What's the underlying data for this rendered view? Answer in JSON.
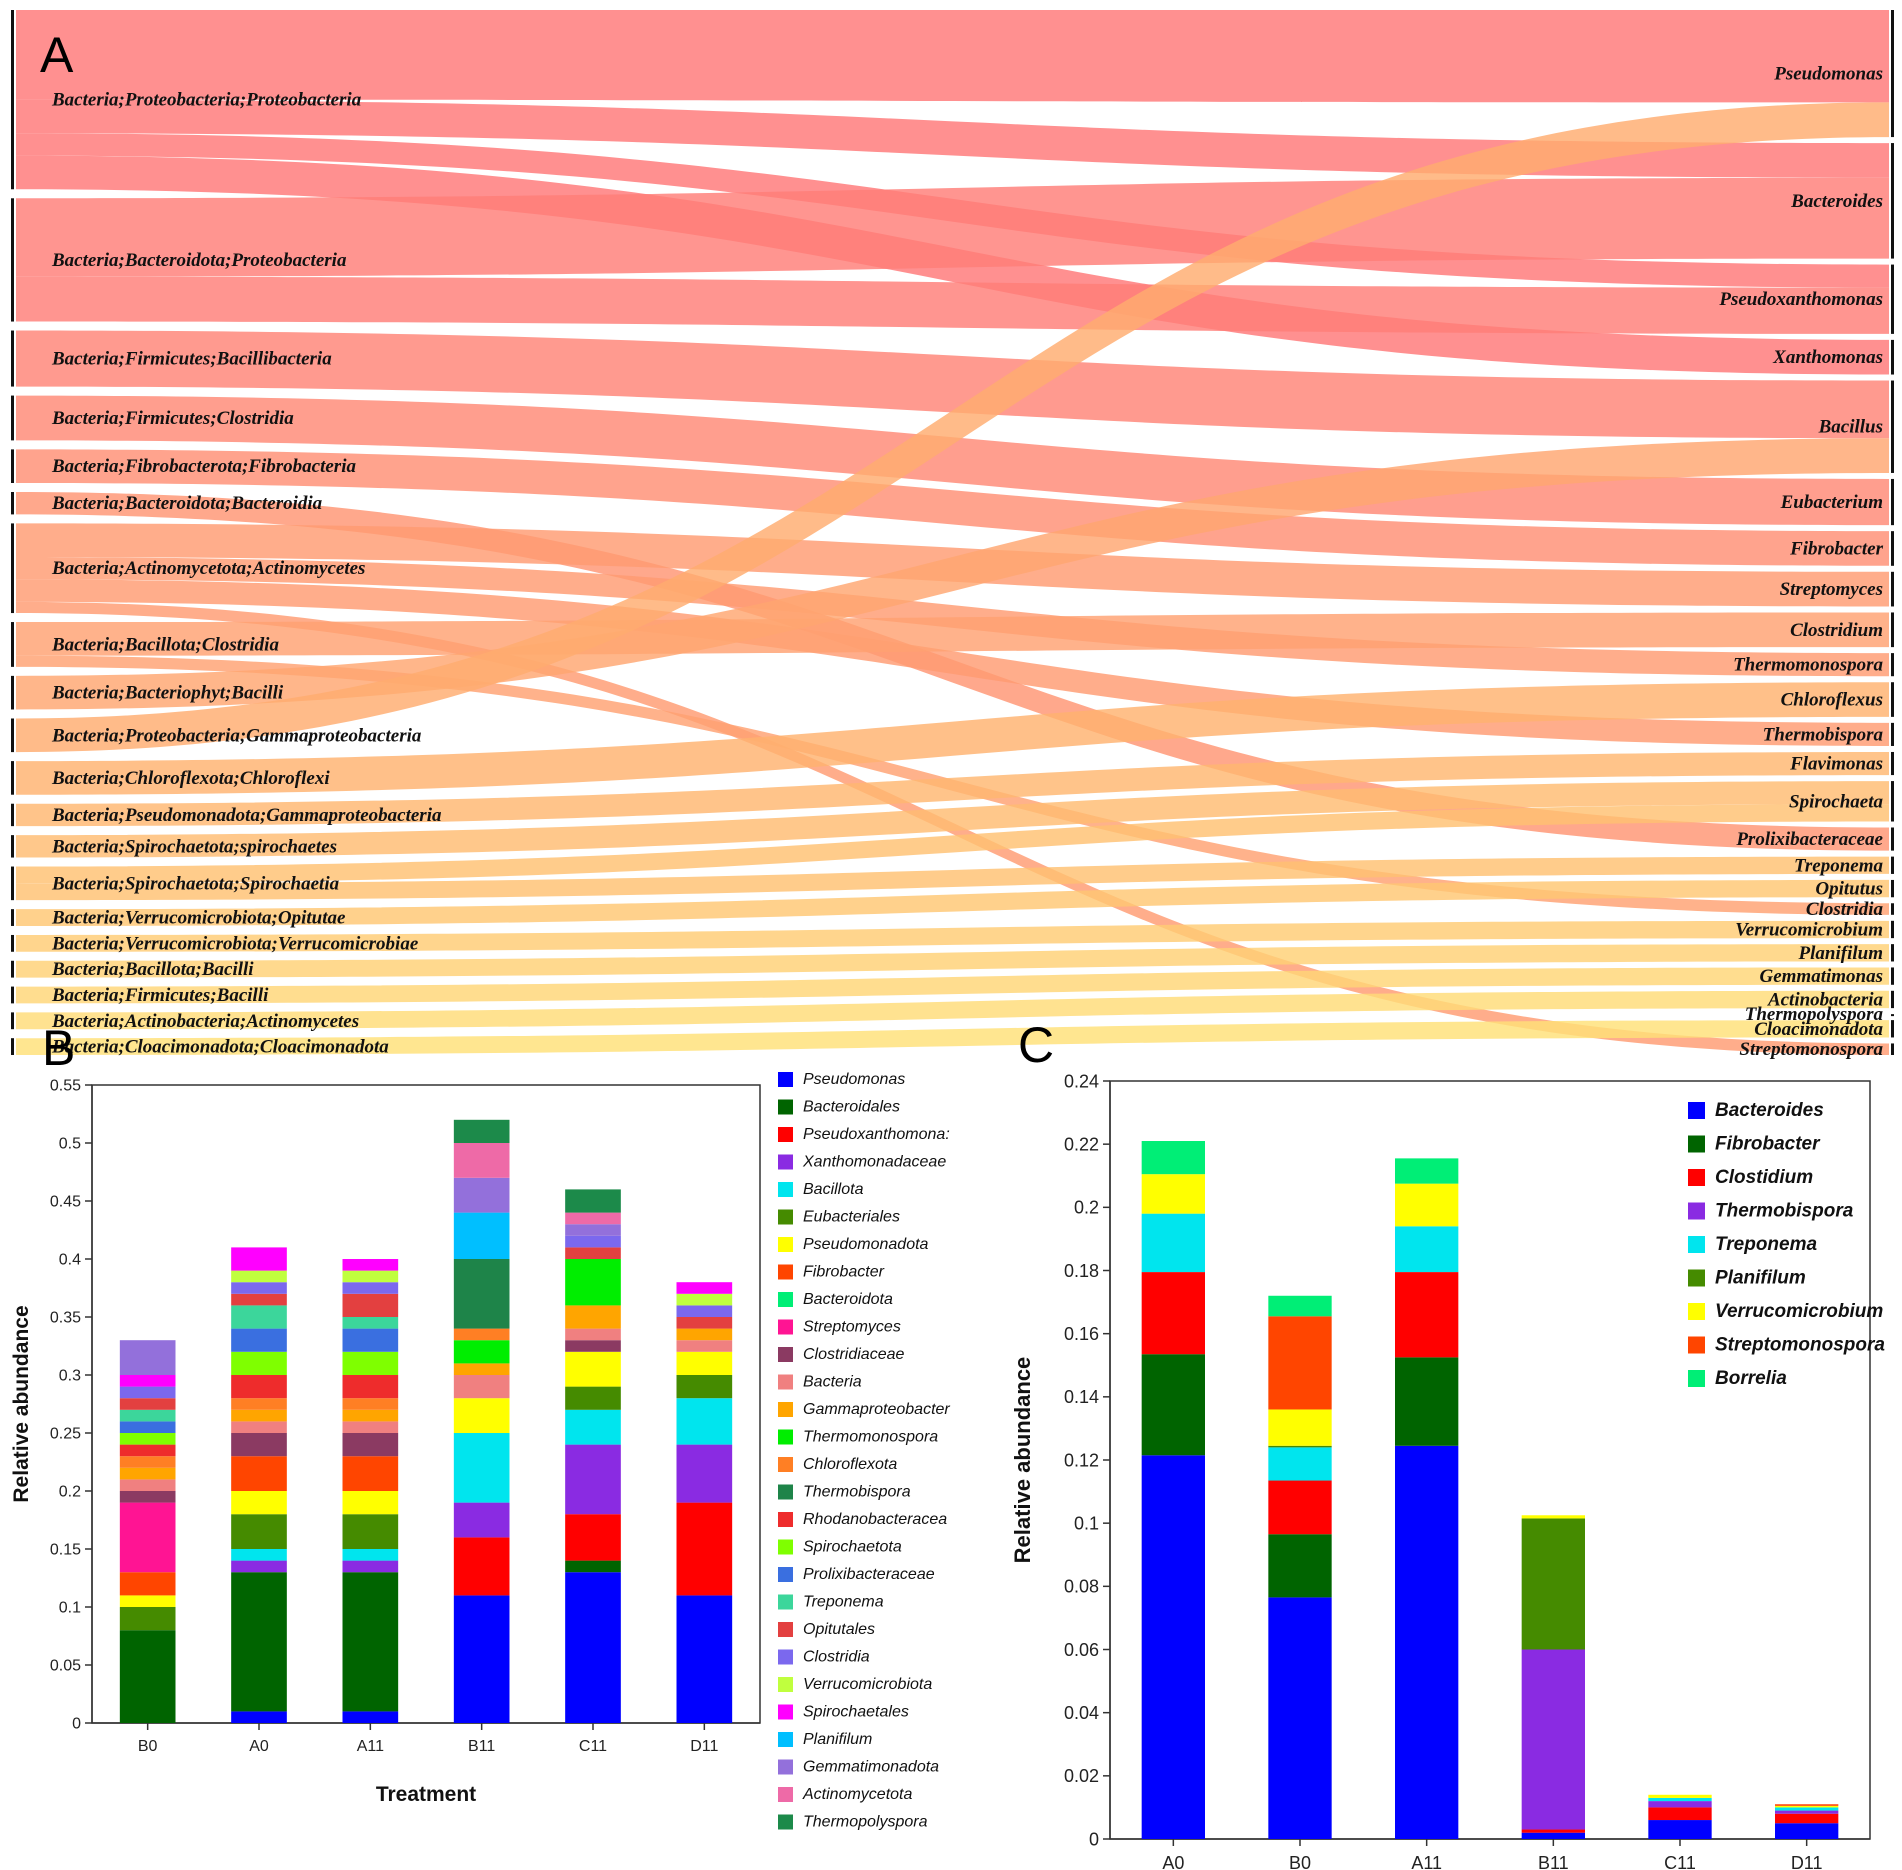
{
  "panel_labels": {
    "a": "A",
    "b": "B",
    "c": "C"
  },
  "chart_data": [
    {
      "type": "sankey",
      "title": "",
      "left_nodes": [
        {
          "label": "Bacteria;Proteobacteria;Proteobacteria",
          "value": 16
        },
        {
          "label": "Bacteria;Bacteroidota;Proteobacteria",
          "value": 11
        },
        {
          "label": "Bacteria;Firmicutes;Bacillibacteria",
          "value": 5
        },
        {
          "label": "Bacteria;Firmicutes;Clostridia",
          "value": 4
        },
        {
          "label": "Bacteria;Fibrobacterota;Fibrobacteria",
          "value": 3
        },
        {
          "label": "Bacteria;Bacteroidota;Bacteroidia",
          "value": 2
        },
        {
          "label": "Bacteria;Actinomycetota;Actinomycetes",
          "value": 8
        },
        {
          "label": "Bacteria;Bacillota;Clostridia",
          "value": 4
        },
        {
          "label": "Bacteria;Bacteriophyt;Bacilli",
          "value": 3
        },
        {
          "label": "Bacteria;Proteobacteria;Gammaproteobacteria",
          "value": 3
        },
        {
          "label": "Bacteria;Chloroflexota;Chloroflexi",
          "value": 3
        },
        {
          "label": "Bacteria;Pseudomonadota;Gammaproteobacteria",
          "value": 2
        },
        {
          "label": "Bacteria;Spirochaetota;spirochaetes",
          "value": 2
        },
        {
          "label": "Bacteria;Spirochaetota;Spirochaetia",
          "value": 3
        },
        {
          "label": "Bacteria;Verrucomicrobiota;Opitutae",
          "value": 1.5
        },
        {
          "label": "Bacteria;Verrucomicrobiota;Verrucomicrobiae",
          "value": 1.5
        },
        {
          "label": "Bacteria;Bacillota;Bacilli",
          "value": 1.5
        },
        {
          "label": "Bacteria;Firmicutes;Bacilli",
          "value": 1.5
        },
        {
          "label": "Bacteria;Actinobacteria;Actinomycetes",
          "value": 1.5
        },
        {
          "label": "Bacteria;Cloacimonadota;Cloacimonadota",
          "value": 1.5
        }
      ],
      "right_nodes": [
        "Pseudomonas",
        "Bacteroides",
        "Pseudoxanthomonas",
        "Xanthomonas",
        "Bacillus",
        "Eubacterium",
        "Fibrobacter",
        "Streptomyces",
        "Clostridium",
        "Thermomonospora",
        "Chloroflexus",
        "Thermobispora",
        "Flavimonas",
        "Spirochaeta",
        "Prolixibacteraceae",
        "Treponema",
        "Opitutus",
        "Clostridia",
        "Verrucomicrobium",
        "Planifilum",
        "Gemmatimonas",
        "Actinobacteria",
        "Thermopolyspora",
        "Cloacimonadota",
        "Streptomonospora"
      ],
      "links": [
        {
          "source": 0,
          "target": "Pseudomonas",
          "value": 8
        },
        {
          "source": 0,
          "target": "Bacteroides",
          "value": 3
        },
        {
          "source": 0,
          "target": "Pseudoxanthomonas",
          "value": 2
        },
        {
          "source": 0,
          "target": "Xanthomonas",
          "value": 3
        },
        {
          "source": 1,
          "target": "Bacteroides",
          "value": 7
        },
        {
          "source": 1,
          "target": "Pseudoxanthomonas",
          "value": 4
        },
        {
          "source": 2,
          "target": "Bacillus",
          "value": 5
        },
        {
          "source": 3,
          "target": "Eubacterium",
          "value": 4
        },
        {
          "source": 4,
          "target": "Fibrobacter",
          "value": 3
        },
        {
          "source": 5,
          "target": "Prolixibacteraceae",
          "value": 2
        },
        {
          "source": 6,
          "target": "Streptomyces",
          "value": 3
        },
        {
          "source": 6,
          "target": "Thermomonospora",
          "value": 2
        },
        {
          "source": 6,
          "target": "Thermobispora",
          "value": 2
        },
        {
          "source": 6,
          "target": "Streptomonospora",
          "value": 1
        },
        {
          "source": 7,
          "target": "Clostridium",
          "value": 3
        },
        {
          "source": 7,
          "target": "Clostridia",
          "value": 1
        },
        {
          "source": 8,
          "target": "Bacillus",
          "value": 3
        },
        {
          "source": 9,
          "target": "Pseudomonas",
          "value": 3
        },
        {
          "source": 10,
          "target": "Chloroflexus",
          "value": 3
        },
        {
          "source": 11,
          "target": "Flavimonas",
          "value": 2
        },
        {
          "source": 12,
          "target": "Spirochaeta",
          "value": 2
        },
        {
          "source": 13,
          "target": "Spirochaeta",
          "value": 1.5
        },
        {
          "source": 13,
          "target": "Treponema",
          "value": 1.5
        },
        {
          "source": 14,
          "target": "Opitutus",
          "value": 1.5
        },
        {
          "source": 15,
          "target": "Verrucomicrobium",
          "value": 1.5
        },
        {
          "source": 16,
          "target": "Planifilum",
          "value": 1.5
        },
        {
          "source": 17,
          "target": "Gemmatimonas",
          "value": 1.5
        },
        {
          "source": 18,
          "target": "Actinobacteria",
          "value": 1.5
        },
        {
          "source": 19,
          "target": "Cloacimonadota",
          "value": 1.5
        }
      ]
    },
    {
      "type": "bar",
      "stacked": true,
      "xlabel": "Treatment",
      "ylabel": "Relative abundance",
      "ylim": [
        0,
        0.55
      ],
      "yticks": [
        0,
        0.05,
        0.1,
        0.15,
        0.2,
        0.25,
        0.3,
        0.35,
        0.4,
        0.45,
        0.5,
        0.55
      ],
      "ytick_labels": [
        "0",
        "0.05",
        "0.1",
        "0.15",
        "0.2",
        "0.25",
        "0.3",
        "0.35",
        "0.4",
        "0.45",
        "0.5",
        "0.55"
      ],
      "categories": [
        "B0",
        "A0",
        "A11",
        "B11",
        "C11",
        "D11"
      ],
      "legend_position": "right",
      "series": [
        {
          "name": "Pseudomonas",
          "color": "#0000ff",
          "values": [
            0,
            0.01,
            0.01,
            0.11,
            0.13,
            0.11
          ]
        },
        {
          "name": "Bacteroidales",
          "color": "#006400",
          "values": [
            0.08,
            0.12,
            0.12,
            0,
            0.01,
            0
          ]
        },
        {
          "name": "Pseudoxanthomonas",
          "color": "#ff0000",
          "values": [
            0,
            0,
            0,
            0.05,
            0.04,
            0.08
          ]
        },
        {
          "name": "Xanthomonadaceae",
          "color": "#8a2be2",
          "values": [
            0,
            0.01,
            0.01,
            0.03,
            0.06,
            0.05
          ]
        },
        {
          "name": "Bacillota",
          "color": "#00e5ee",
          "values": [
            0,
            0.01,
            0.01,
            0.06,
            0.03,
            0.04
          ]
        },
        {
          "name": "Eubacteriales",
          "color": "#458b00",
          "values": [
            0.02,
            0.03,
            0.03,
            0,
            0.02,
            0.02
          ]
        },
        {
          "name": "Pseudomonadota",
          "color": "#ffff00",
          "values": [
            0.01,
            0.02,
            0.02,
            0.03,
            0.03,
            0.02
          ]
        },
        {
          "name": "Fibrobacter",
          "color": "#ff4500",
          "values": [
            0.02,
            0.03,
            0.03,
            0,
            0,
            0
          ]
        },
        {
          "name": "Bacteroidota",
          "color": "#00ee76",
          "values": [
            0,
            0,
            0,
            0,
            0,
            0
          ]
        },
        {
          "name": "Streptomyces",
          "color": "#ff1493",
          "values": [
            0.06,
            0,
            0,
            0,
            0,
            0
          ]
        },
        {
          "name": "Clostridiaceae",
          "color": "#8b3a62",
          "values": [
            0.01,
            0.02,
            0.02,
            0,
            0.01,
            0
          ]
        },
        {
          "name": "Bacteria",
          "color": "#f08080",
          "values": [
            0.01,
            0.01,
            0.01,
            0.02,
            0.01,
            0.01
          ]
        },
        {
          "name": "Gammaproteobacteria",
          "color": "#ffa500",
          "values": [
            0.01,
            0.01,
            0.01,
            0.01,
            0.02,
            0.01
          ]
        },
        {
          "name": "Thermomonospora",
          "color": "#00ee00",
          "values": [
            0,
            0,
            0,
            0.02,
            0.04,
            0
          ]
        },
        {
          "name": "Chloroflexota",
          "color": "#ff7f24",
          "values": [
            0.01,
            0.01,
            0.01,
            0.01,
            0,
            0
          ]
        },
        {
          "name": "Thermobispora",
          "color": "#1e8449",
          "values": [
            0,
            0,
            0,
            0.06,
            0,
            0
          ]
        },
        {
          "name": "Rhodanobacteraceae",
          "color": "#ee2c2c",
          "values": [
            0.01,
            0.02,
            0.02,
            0,
            0,
            0
          ]
        },
        {
          "name": "Spirochaetota",
          "color": "#7fff00",
          "values": [
            0.01,
            0.02,
            0.02,
            0,
            0,
            0
          ]
        },
        {
          "name": "Prolixibacteraceae",
          "color": "#3a6fe0",
          "values": [
            0.01,
            0.02,
            0.02,
            0,
            0,
            0
          ]
        },
        {
          "name": "Treponema",
          "color": "#3cd69b",
          "values": [
            0.01,
            0.02,
            0.01,
            0,
            0,
            0
          ]
        },
        {
          "name": "Opitutales",
          "color": "#e34040",
          "values": [
            0.01,
            0.01,
            0.02,
            0,
            0.01,
            0.01
          ]
        },
        {
          "name": "Clostridia",
          "color": "#7b68ee",
          "values": [
            0.01,
            0.01,
            0.01,
            0,
            0.01,
            0.01
          ]
        },
        {
          "name": "Verrucomicrobiota",
          "color": "#c0ff3e",
          "values": [
            0,
            0.01,
            0.01,
            0,
            0,
            0.01
          ]
        },
        {
          "name": "Spirochaetales",
          "color": "#ff00ff",
          "values": [
            0.01,
            0.02,
            0.01,
            0,
            0,
            0.01
          ]
        },
        {
          "name": "Planifilum",
          "color": "#00bfff",
          "values": [
            0,
            0,
            0,
            0.04,
            0,
            0
          ]
        },
        {
          "name": "Gemmatimonadota",
          "color": "#9370db",
          "values": [
            0.03,
            0,
            0,
            0.03,
            0.01,
            0
          ]
        },
        {
          "name": "Actinomycetota",
          "color": "#ee6aa7",
          "values": [
            0,
            0,
            0,
            0.03,
            0.01,
            0
          ]
        },
        {
          "name": "Thermopolyspora",
          "color": "#1c8a4a",
          "values": [
            0,
            0,
            0,
            0.02,
            0.02,
            0
          ]
        }
      ],
      "legend_labels": [
        "Pseudomonas",
        "Bacteroidales",
        "Pseudoxanthomona:",
        "Xanthomonadaceae",
        "Bacillota",
        "Eubacteriales",
        "Pseudomonadota",
        "Fibrobacter",
        "Bacteroidota",
        "Streptomyces",
        "Clostridiaceae",
        "Bacteria",
        "Gammaproteobacter",
        "Thermomonospora",
        "Chloroflexota",
        "Thermobispora",
        "Rhodanobacteracea",
        "Spirochaetota",
        "Prolixibacteraceae",
        "Treponema",
        "Opitutales",
        "Clostridia",
        "Verrucomicrobiota",
        "Spirochaetales",
        "Planifilum",
        "Gemmatimonadota",
        "Actinomycetota",
        "Thermopolyspora"
      ]
    },
    {
      "type": "bar",
      "stacked": true,
      "xlabel": "",
      "ylabel": "Relative abundance",
      "ylim": [
        0,
        0.24
      ],
      "yticks": [
        0,
        0.02,
        0.04,
        0.06,
        0.08,
        0.1,
        0.12,
        0.14,
        0.16,
        0.18,
        0.2,
        0.22,
        0.24
      ],
      "ytick_labels": [
        "0",
        "0.02",
        "0.04",
        "0.06",
        "0.08",
        "0.1",
        "0.12",
        "0.14",
        "0.16",
        "0.18",
        "0.2",
        "0.22",
        "0.24"
      ],
      "categories": [
        "A0",
        "B0",
        "A11",
        "B11",
        "C11",
        "D11"
      ],
      "legend_position": "top-right",
      "series": [
        {
          "name": "Bacteroides",
          "color": "#0000ff",
          "values": [
            0.1215,
            0.0765,
            0.1245,
            0.002,
            0.006,
            0.005
          ]
        },
        {
          "name": "Fibrobacter",
          "color": "#006400",
          "values": [
            0.032,
            0.02,
            0.028,
            0,
            0,
            0
          ]
        },
        {
          "name": "Clostidium",
          "color": "#ff0000",
          "values": [
            0.026,
            0.017,
            0.027,
            0.001,
            0.004,
            0.003
          ]
        },
        {
          "name": "Thermobispora",
          "color": "#8a2be2",
          "values": [
            0,
            0,
            0,
            0.057,
            0.002,
            0.001
          ]
        },
        {
          "name": "Treponema",
          "color": "#00e5ee",
          "values": [
            0.0185,
            0.0105,
            0.0145,
            0,
            0.001,
            0.001
          ]
        },
        {
          "name": "Planifilum",
          "color": "#458b00",
          "values": [
            0,
            0.0005,
            0,
            0.0415,
            0,
            0
          ]
        },
        {
          "name": "Verrucomicrobium",
          "color": "#ffff00",
          "values": [
            0.0125,
            0.0115,
            0.0135,
            0.001,
            0.001,
            0.0005
          ]
        },
        {
          "name": "Streptomonospora",
          "color": "#ff4500",
          "values": [
            0,
            0.0295,
            0,
            0,
            0,
            0.0005
          ]
        },
        {
          "name": "Borrelia",
          "color": "#00ee76",
          "values": [
            0.0105,
            0.0065,
            0.008,
            0,
            0,
            0
          ]
        }
      ]
    }
  ]
}
